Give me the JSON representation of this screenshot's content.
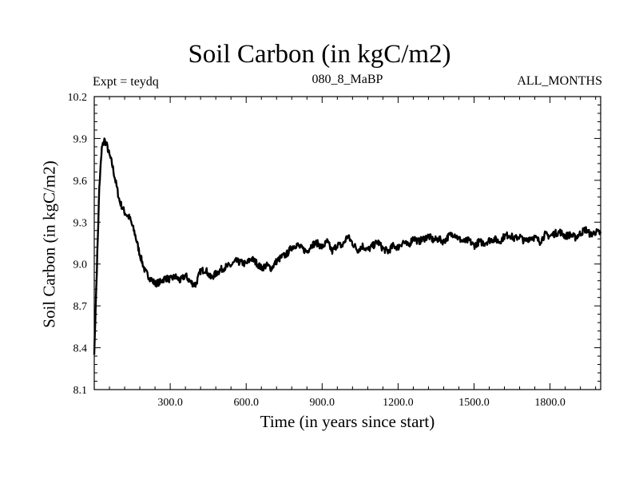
{
  "chart_data": {
    "type": "line",
    "title": "Soil Carbon (in kgC/m2)",
    "annotations": {
      "left": "Expt = teydq",
      "center": "080_8_MaBP",
      "right": "ALL_MONTHS"
    },
    "xlabel": "Time (in years since start)",
    "ylabel": "Soil Carbon (in kgC/m2)",
    "xlim": [
      0,
      2000
    ],
    "ylim": [
      8.1,
      10.2
    ],
    "xticks": [
      300,
      600,
      900,
      1200,
      1500,
      1800
    ],
    "xtick_labels": [
      "300.0",
      "600.0",
      "900.0",
      "1200.0",
      "1500.0",
      "1800.0"
    ],
    "yticks": [
      8.1,
      8.4,
      8.7,
      9.0,
      9.3,
      9.6,
      9.9,
      10.2
    ],
    "ytick_labels": [
      "8.1",
      "8.4",
      "8.7",
      "9.0",
      "9.3",
      "9.6",
      "9.9",
      "10.2"
    ],
    "grid": false,
    "series": [
      {
        "name": "Soil Carbon",
        "x": [
          0,
          10,
          20,
          30,
          40,
          50,
          60,
          70,
          80,
          100,
          120,
          140,
          160,
          180,
          200,
          220,
          240,
          260,
          280,
          300,
          320,
          340,
          360,
          380,
          400,
          420,
          440,
          460,
          480,
          500,
          520,
          540,
          560,
          580,
          600,
          620,
          640,
          660,
          680,
          700,
          720,
          740,
          760,
          780,
          800,
          820,
          840,
          860,
          880,
          900,
          920,
          940,
          960,
          980,
          1000,
          1020,
          1040,
          1060,
          1080,
          1100,
          1120,
          1140,
          1160,
          1180,
          1200,
          1220,
          1240,
          1260,
          1280,
          1300,
          1320,
          1340,
          1360,
          1380,
          1400,
          1420,
          1440,
          1460,
          1480,
          1500,
          1520,
          1540,
          1560,
          1580,
          1600,
          1620,
          1640,
          1660,
          1680,
          1700,
          1720,
          1740,
          1760,
          1780,
          1800,
          1820,
          1840,
          1860,
          1880,
          1900,
          1920,
          1940,
          1960,
          1980,
          2000
        ],
        "y": [
          8.35,
          8.95,
          9.55,
          9.83,
          9.89,
          9.85,
          9.78,
          9.72,
          9.63,
          9.45,
          9.37,
          9.33,
          9.22,
          9.07,
          8.95,
          8.9,
          8.86,
          8.87,
          8.9,
          8.89,
          8.91,
          8.88,
          8.92,
          8.87,
          8.85,
          8.95,
          8.96,
          8.9,
          8.93,
          8.96,
          8.98,
          8.99,
          9.02,
          9.01,
          9.0,
          9.04,
          9.01,
          8.97,
          8.99,
          8.97,
          9.02,
          9.05,
          9.07,
          9.12,
          9.14,
          9.11,
          9.09,
          9.14,
          9.15,
          9.12,
          9.16,
          9.09,
          9.14,
          9.13,
          9.2,
          9.15,
          9.1,
          9.13,
          9.1,
          9.13,
          9.16,
          9.11,
          9.09,
          9.13,
          9.12,
          9.16,
          9.13,
          9.19,
          9.16,
          9.18,
          9.2,
          9.17,
          9.18,
          9.16,
          9.2,
          9.22,
          9.18,
          9.16,
          9.17,
          9.13,
          9.16,
          9.15,
          9.17,
          9.18,
          9.16,
          9.2,
          9.21,
          9.18,
          9.2,
          9.16,
          9.19,
          9.19,
          9.16,
          9.21,
          9.2,
          9.22,
          9.23,
          9.2,
          9.21,
          9.19,
          9.22,
          9.25,
          9.21,
          9.23,
          9.22
        ]
      }
    ]
  }
}
